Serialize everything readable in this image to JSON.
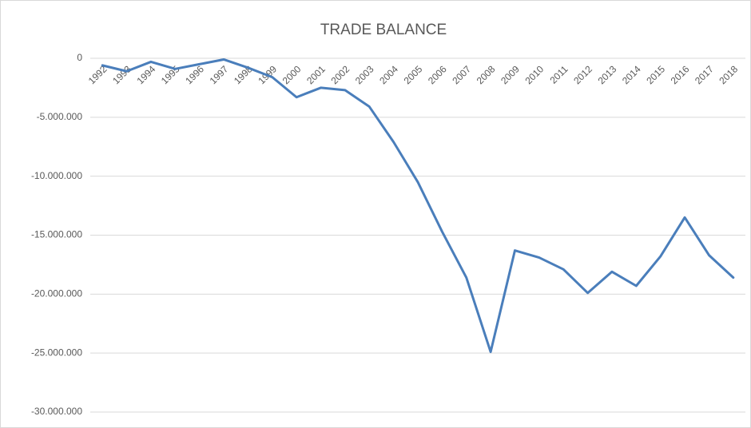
{
  "chart_data": {
    "type": "line",
    "title": "TRADE BALANCE",
    "categories": [
      "1992",
      "1993",
      "1994",
      "1995",
      "1996",
      "1997",
      "1998",
      "1999",
      "2000",
      "2001",
      "2002",
      "2003",
      "2004",
      "2005",
      "2006",
      "2007",
      "2008",
      "2009",
      "2010",
      "2011",
      "2012",
      "2013",
      "2014",
      "2015",
      "2016",
      "2017",
      "2018"
    ],
    "series": [
      {
        "name": "Trade balance",
        "color": "#4a7ebb",
        "values": [
          -600000,
          -1100000,
          -300000,
          -900000,
          -500000,
          -100000,
          -800000,
          -1600000,
          -3300000,
          -2500000,
          -2700000,
          -4100000,
          -7100000,
          -10500000,
          -14700000,
          -18600000,
          -24900000,
          -16300000,
          -16900000,
          -17900000,
          -19900000,
          -18100000,
          -19300000,
          -16800000,
          -13500000,
          -16700000,
          -18600000
        ]
      }
    ],
    "ylim": [
      -30000000,
      0
    ],
    "yticks": [
      {
        "value": 0,
        "label": "0"
      },
      {
        "value": -5000000,
        "label": "-5.000.000"
      },
      {
        "value": -10000000,
        "label": "-10.000.000"
      },
      {
        "value": -15000000,
        "label": "-15.000.000"
      },
      {
        "value": -20000000,
        "label": "-20.000.000"
      },
      {
        "value": -25000000,
        "label": "-25.000.000"
      },
      {
        "value": -30000000,
        "label": "-30.000.000"
      }
    ],
    "grid": true
  }
}
